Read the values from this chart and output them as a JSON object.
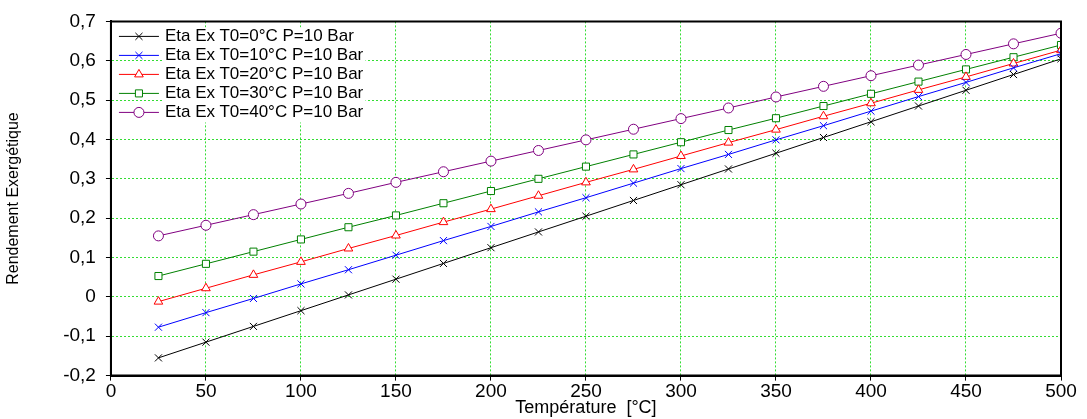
{
  "chart_data": {
    "type": "line",
    "xlabel": "Température  [°C]",
    "ylabel": "Rendement Exergétique",
    "x": [
      25,
      50,
      75,
      100,
      125,
      150,
      175,
      200,
      225,
      250,
      275,
      300,
      325,
      350,
      375,
      400,
      425,
      450,
      475,
      500
    ],
    "xlim": [
      0,
      500
    ],
    "xticks": [
      0,
      50,
      100,
      150,
      200,
      250,
      300,
      350,
      400,
      450,
      500
    ],
    "ylim": [
      -0.2,
      0.7
    ],
    "yticks": [
      {
        "value": -0.2,
        "label": "-0,2"
      },
      {
        "value": -0.1,
        "label": "-0,1"
      },
      {
        "value": 0,
        "label": "0"
      },
      {
        "value": 0.1,
        "label": "0,1"
      },
      {
        "value": 0.2,
        "label": "0,2"
      },
      {
        "value": 0.3,
        "label": "0,3"
      },
      {
        "value": 0.4,
        "label": "0,4"
      },
      {
        "value": 0.5,
        "label": "0,5"
      },
      {
        "value": 0.6,
        "label": "0,6"
      },
      {
        "value": 0.7,
        "label": "0,7"
      }
    ],
    "grid": true,
    "legend": "top left",
    "line_style": "solid",
    "series": [
      {
        "name": "Eta Ex T0=0°C P=10 Bar",
        "color": "#000000",
        "marker": "cross",
        "values": [
          -0.155,
          -0.115,
          -0.075,
          -0.035,
          0.005,
          0.045,
          0.085,
          0.125,
          0.165,
          0.205,
          0.245,
          0.285,
          0.325,
          0.365,
          0.405,
          0.445,
          0.485,
          0.525,
          0.565,
          0.605
        ]
      },
      {
        "name": "Eta Ex T0=10°C P=10 Bar",
        "color": "#0000ff",
        "marker": "cross",
        "values": [
          -0.077,
          -0.04,
          -0.004,
          0.033,
          0.069,
          0.106,
          0.143,
          0.179,
          0.216,
          0.252,
          0.289,
          0.326,
          0.362,
          0.399,
          0.435,
          0.472,
          0.509,
          0.545,
          0.582,
          0.618
        ]
      },
      {
        "name": "Eta Ex T0=20°C P=10 Bar",
        "color": "#ff0000",
        "marker": "triangle",
        "values": [
          -0.012,
          0.022,
          0.056,
          0.089,
          0.123,
          0.156,
          0.19,
          0.223,
          0.257,
          0.291,
          0.324,
          0.358,
          0.392,
          0.425,
          0.459,
          0.492,
          0.526,
          0.559,
          0.593,
          0.627
        ]
      },
      {
        "name": "Eta Ex T0=30°C P=10 Bar",
        "color": "#008000",
        "marker": "square",
        "values": [
          0.053,
          0.084,
          0.115,
          0.146,
          0.177,
          0.207,
          0.238,
          0.269,
          0.3,
          0.331,
          0.362,
          0.393,
          0.424,
          0.454,
          0.485,
          0.516,
          0.547,
          0.578,
          0.609,
          0.64
        ]
      },
      {
        "name": "Eta Ex T0=40°C P=10 Bar",
        "color": "#800080",
        "marker": "circle",
        "values": [
          0.155,
          0.182,
          0.209,
          0.236,
          0.263,
          0.291,
          0.318,
          0.345,
          0.372,
          0.399,
          0.426,
          0.453,
          0.48,
          0.508,
          0.535,
          0.562,
          0.589,
          0.616,
          0.643,
          0.67
        ]
      }
    ]
  }
}
